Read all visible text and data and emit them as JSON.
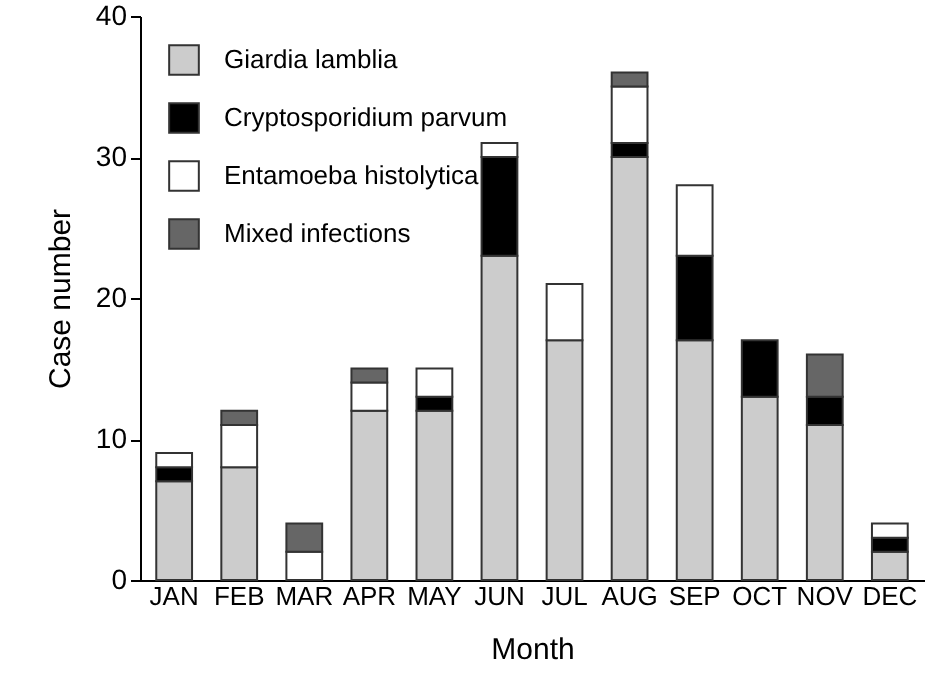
{
  "chart_data": {
    "type": "bar",
    "stacked": true,
    "xlabel": "Month",
    "ylabel": "Case number",
    "categories": [
      "JAN",
      "FEB",
      "MAR",
      "APR",
      "MAY",
      "JUN",
      "JUL",
      "AUG",
      "SEP",
      "OCT",
      "NOV",
      "DEC"
    ],
    "series": [
      {
        "name": "Giardia lamblia",
        "color": "#cccccc",
        "values": [
          7,
          8,
          0,
          12,
          12,
          23,
          17,
          30,
          17,
          13,
          11,
          2
        ]
      },
      {
        "name": "Cryptosporidium parvum",
        "color": "#000000",
        "values": [
          1,
          0,
          0,
          0,
          1,
          7,
          0,
          1,
          6,
          4,
          2,
          1
        ]
      },
      {
        "name": "Entamoeba histolytica",
        "color": "#ffffff",
        "values": [
          1,
          3,
          2,
          2,
          2,
          1,
          4,
          4,
          5,
          0,
          0,
          1
        ]
      },
      {
        "name": "Mixed infections",
        "color": "#666666",
        "values": [
          0,
          1,
          2,
          1,
          0,
          0,
          0,
          1,
          0,
          0,
          3,
          0
        ]
      }
    ],
    "ylim": [
      0,
      40
    ],
    "yticks": [
      0,
      10,
      20,
      30,
      40
    ],
    "grid": false,
    "legend": "top left"
  }
}
